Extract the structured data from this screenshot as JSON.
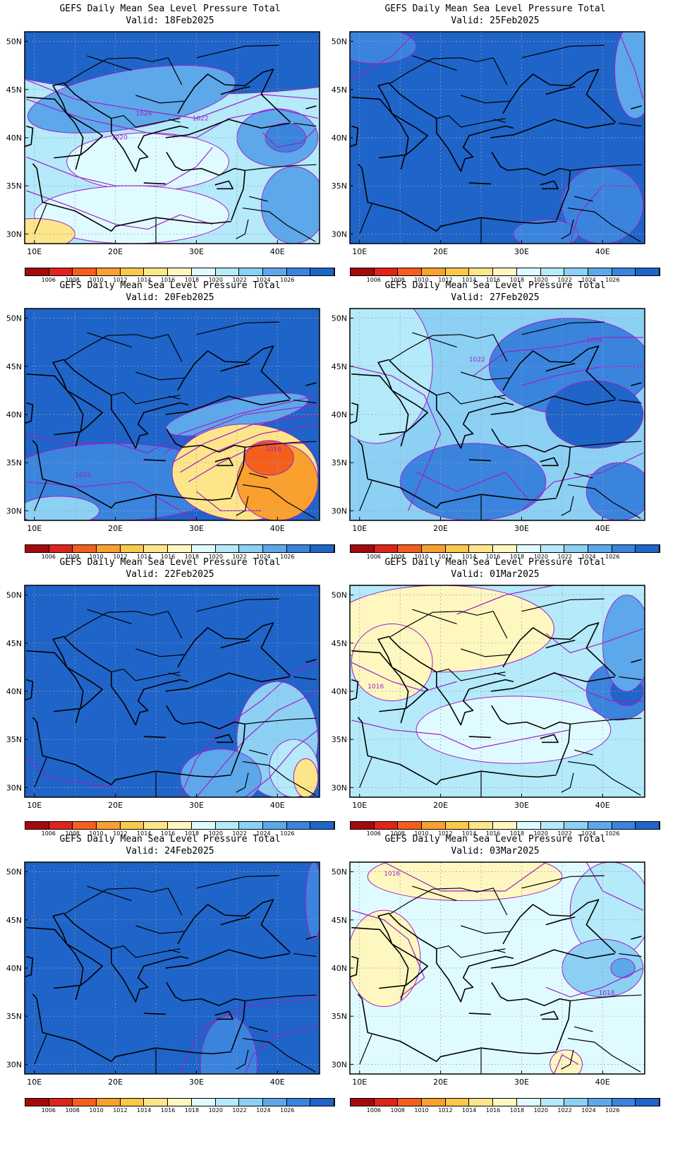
{
  "title_line": "GEFS Daily Mean Sea Level Pressure Total",
  "axis": {
    "lat_labels": [
      "50N",
      "45N",
      "40N",
      "35N",
      "30N"
    ],
    "lon_labels": [
      "10E",
      "20E",
      "30E",
      "40E"
    ]
  },
  "colorbar": {
    "labels": [
      "1006",
      "1008",
      "1010",
      "1012",
      "1014",
      "1016",
      "1018",
      "1020",
      "1022",
      "1024",
      "1026"
    ],
    "colors": [
      "#a50a0a",
      "#e0241c",
      "#f4601c",
      "#f9a02e",
      "#fbc84a",
      "#fde58a",
      "#fef7c0",
      "#e0fbff",
      "#b4eafa",
      "#8cd0f4",
      "#5ca8ea",
      "#3a84de",
      "#1f64c8"
    ]
  },
  "panels": [
    {
      "valid": "Valid: 18Feb2025",
      "labels": [
        "1024",
        "1022",
        "1020"
      ]
    },
    {
      "valid": "Valid: 25Feb2025",
      "labels": []
    },
    {
      "valid": "Valid: 20Feb2025",
      "labels": [
        "1024",
        "1016"
      ]
    },
    {
      "valid": "Valid: 27Feb2025",
      "labels": [
        "1022",
        "1024"
      ]
    },
    {
      "valid": "Valid: 22Feb2025",
      "labels": []
    },
    {
      "valid": "Valid: 01Mar2025",
      "labels": [
        "1016"
      ]
    },
    {
      "valid": "Valid: 24Feb2025",
      "labels": []
    },
    {
      "valid": "Valid: 03Mar2025",
      "labels": [
        "1016",
        "1018"
      ]
    }
  ]
}
